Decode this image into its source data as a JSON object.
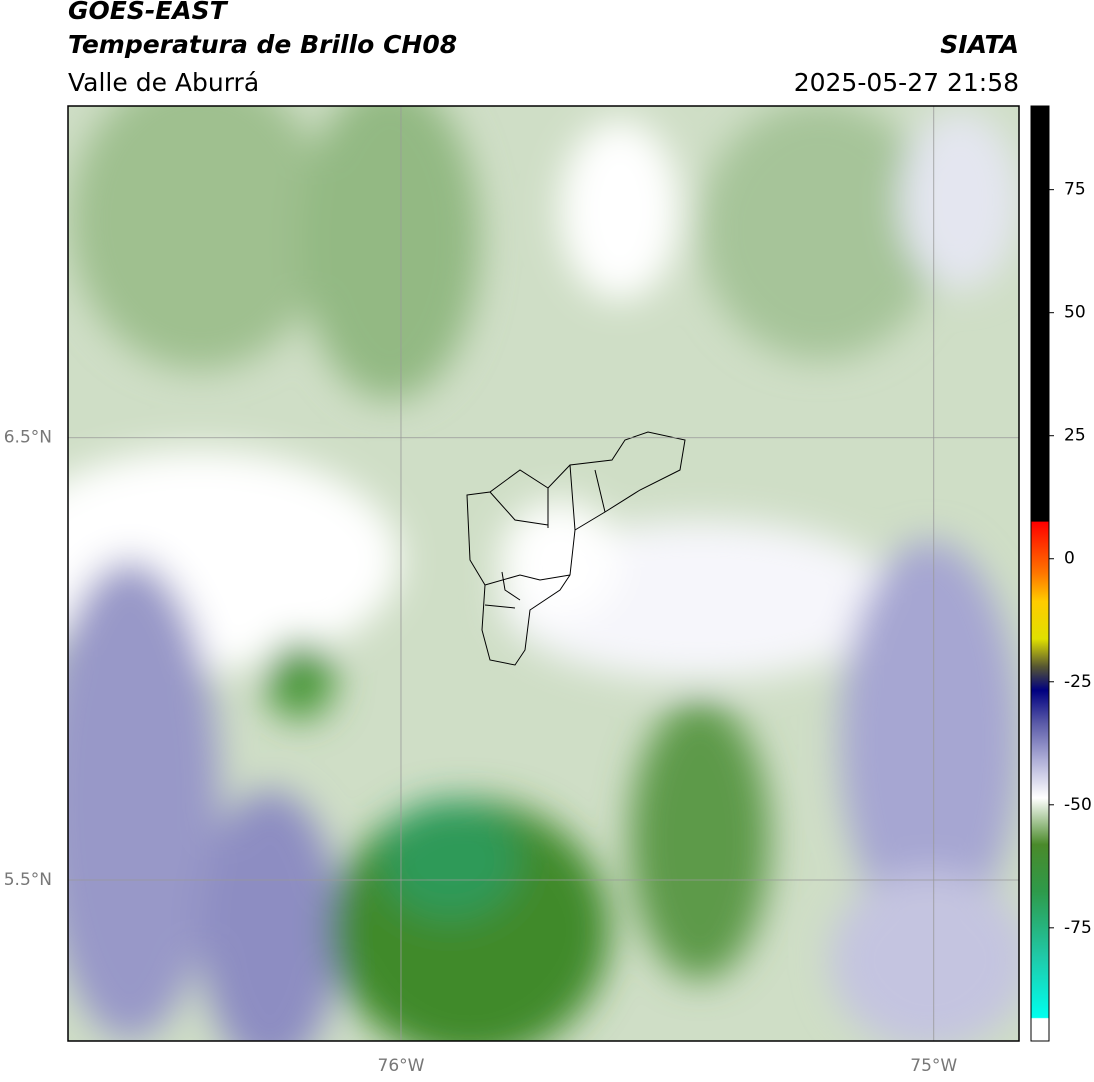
{
  "header": {
    "title": "GOES-EAST",
    "subtitle": "Temperatura de Brillo CH08",
    "region": "Valle de Aburrá",
    "source": "SIATA",
    "datetime": "2025-05-27 21:58"
  },
  "map": {
    "xlim": [
      -76.625,
      -74.84
    ],
    "ylim": [
      5.136,
      7.25
    ],
    "xticks": [
      {
        "value": -76,
        "label": "76°W"
      },
      {
        "value": -75,
        "label": "75°W"
      }
    ],
    "yticks": [
      {
        "value": 6.5,
        "label": "6.5°N"
      },
      {
        "value": 5.5,
        "label": "5.5°N"
      }
    ],
    "grid": true
  },
  "colorbar": {
    "lim": [
      -98,
      92
    ],
    "ticks": [
      75,
      50,
      25,
      0,
      -25,
      -50,
      -75
    ]
  }
}
